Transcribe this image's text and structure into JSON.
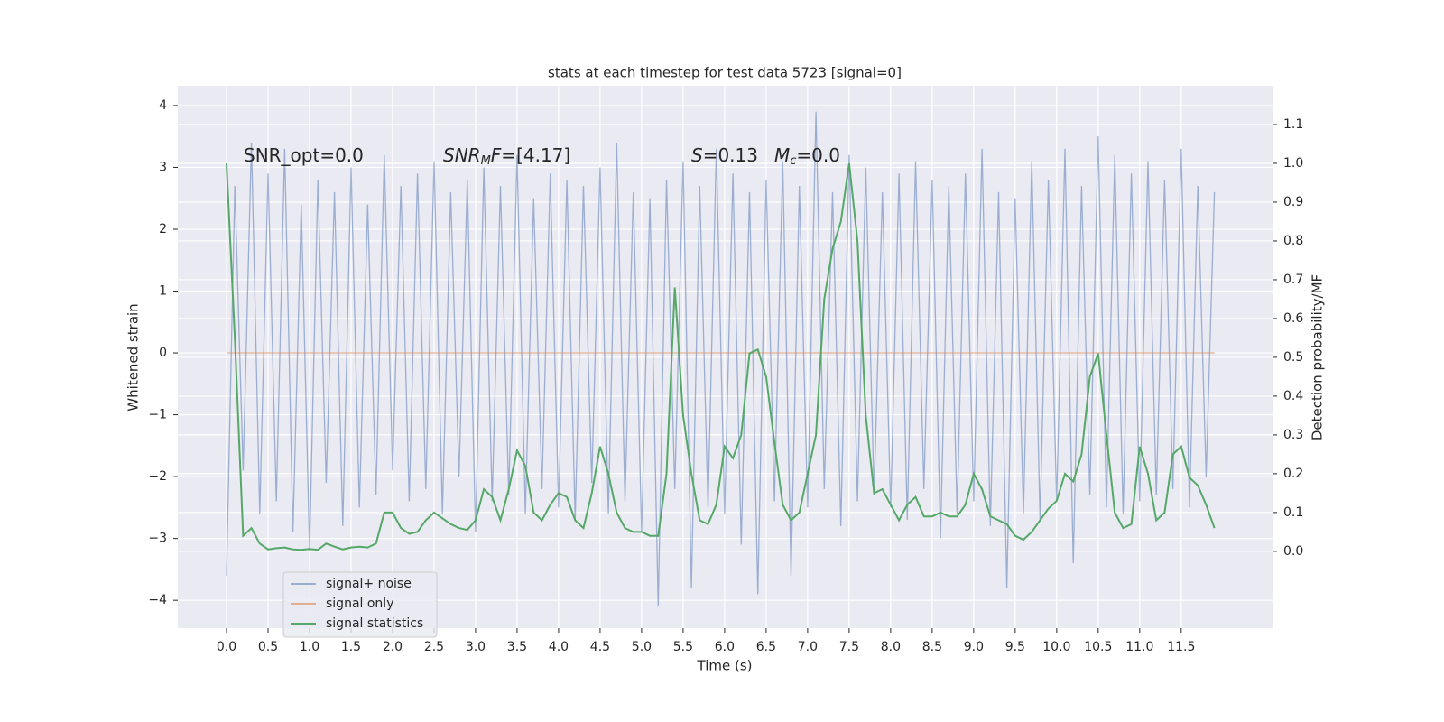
{
  "chart_data": {
    "type": "line",
    "title": "stats at each timestep for test data 5723 [signal=0]",
    "xlabel": "Time (s)",
    "ylabel": "Whitened strain",
    "y2label": "Detection probability/MF",
    "annotations": [
      [
        {
          "text": "SNR_opt=0.0"
        }
      ],
      [
        {
          "text": "SNR",
          "italic": true
        },
        {
          "text": "M",
          "italic": true,
          "sub": true
        },
        {
          "text": "F",
          "italic": true
        },
        {
          "text": "=[4.17]"
        }
      ],
      [
        {
          "text": "S",
          "italic": true
        },
        {
          "text": "=0.13"
        }
      ],
      [
        {
          "text": "M",
          "italic": true
        },
        {
          "text": "c",
          "italic": true,
          "sub": true
        },
        {
          "text": "=0.0"
        }
      ]
    ],
    "grid": true,
    "legend": "lower left",
    "xlim": [
      -0.587,
      12.6
    ],
    "ylim": [
      -4.45,
      4.32
    ],
    "y2lim": [
      -0.198,
      1.2
    ],
    "xticks": [
      {
        "value": 0,
        "label": "0.0"
      },
      0.5,
      {
        "value": 1,
        "label": "1.0"
      },
      1.5,
      {
        "value": 2,
        "label": "2.0"
      },
      2.5,
      {
        "value": 3,
        "label": "3.0"
      },
      3.5,
      {
        "value": 4,
        "label": "4.0"
      },
      4.5,
      {
        "value": 5,
        "label": "5.0"
      },
      5.5,
      {
        "value": 6,
        "label": "6.0"
      },
      6.5,
      {
        "value": 7,
        "label": "7.0"
      },
      7.5,
      {
        "value": 8,
        "label": "8.0"
      },
      8.5,
      {
        "value": 9,
        "label": "9.0"
      },
      9.5,
      {
        "value": 10,
        "label": "10.0"
      },
      10.5,
      {
        "value": 11,
        "label": "11.0"
      },
      11.5
    ],
    "yticks": [
      {
        "value": -4,
        "label": "−4"
      },
      {
        "value": -3,
        "label": "−3"
      },
      {
        "value": -2,
        "label": "−2"
      },
      {
        "value": -1,
        "label": "−1"
      },
      0,
      1,
      2,
      3,
      4
    ],
    "y2ticks": [
      {
        "value": 0,
        "label": "0.0"
      },
      0.1,
      0.2,
      0.3,
      0.4,
      0.5,
      0.6,
      0.7,
      0.8,
      0.9,
      {
        "value": 1,
        "label": "1.0"
      },
      1.1
    ],
    "x": [
      0,
      0.1,
      0.2,
      0.3,
      0.4,
      0.5,
      0.6,
      0.7,
      0.8,
      0.9,
      1,
      1.1,
      1.2,
      1.3,
      1.4,
      1.5,
      1.6,
      1.7,
      1.8,
      1.9,
      2,
      2.1,
      2.2,
      2.3,
      2.4,
      2.5,
      2.6,
      2.7,
      2.8,
      2.9,
      3,
      3.1,
      3.2,
      3.3,
      3.4,
      3.5,
      3.6,
      3.7,
      3.8,
      3.9,
      4,
      4.1,
      4.2,
      4.3,
      4.4,
      4.5,
      4.6,
      4.7,
      4.8,
      4.9,
      5,
      5.1,
      5.2,
      5.3,
      5.4,
      5.5,
      5.6,
      5.7,
      5.8,
      5.9,
      6,
      6.1,
      6.2,
      6.3,
      6.4,
      6.5,
      6.6,
      6.7,
      6.8,
      6.9,
      7,
      7.1,
      7.2,
      7.3,
      7.4,
      7.5,
      7.6,
      7.7,
      7.8,
      7.9,
      8,
      8.1,
      8.2,
      8.3,
      8.4,
      8.5,
      8.6,
      8.7,
      8.8,
      8.9,
      9,
      9.1,
      9.2,
      9.3,
      9.4,
      9.5,
      9.6,
      9.7,
      9.8,
      9.9,
      10,
      10.1,
      10.2,
      10.3,
      10.4,
      10.5,
      10.6,
      10.7,
      10.8,
      10.9,
      11,
      11.1,
      11.2,
      11.3,
      11.4,
      11.5,
      11.6,
      11.7,
      11.8,
      11.9
    ],
    "series": [
      {
        "name": "signal+ noise",
        "color": "#4c72b0",
        "alpha": 0.5,
        "values": [
          -3.6,
          2.7,
          -1.9,
          3.4,
          -2.6,
          2.9,
          -2.4,
          3.3,
          -2.9,
          2.4,
          -3.2,
          2.8,
          -2.1,
          2.6,
          -2.8,
          3.0,
          -2.5,
          2.4,
          -2.3,
          3.2,
          -1.9,
          2.7,
          -2.4,
          2.9,
          -2.2,
          3.1,
          -2.6,
          2.6,
          -2.0,
          2.8,
          -2.9,
          3.0,
          -2.4,
          2.7,
          -2.3,
          3.2,
          -2.6,
          2.5,
          -2.2,
          2.9,
          -2.5,
          2.8,
          -2.7,
          2.7,
          -2.1,
          3.0,
          -2.6,
          3.4,
          -2.4,
          2.6,
          -2.9,
          2.5,
          -4.1,
          2.8,
          -2.2,
          3.1,
          -3.8,
          2.7,
          -2.5,
          3.3,
          -2.6,
          2.9,
          -3.1,
          2.6,
          -3.9,
          2.8,
          -2.4,
          3.1,
          -3.6,
          2.7,
          -2.5,
          3.9,
          -2.2,
          2.6,
          -2.8,
          3.2,
          -2.4,
          3.0,
          -2.3,
          2.6,
          -2.5,
          2.9,
          -2.7,
          3.1,
          -2.2,
          2.8,
          -3.0,
          2.7,
          -2.6,
          2.9,
          -2.4,
          3.3,
          -2.8,
          2.6,
          -3.8,
          2.5,
          -2.6,
          3.1,
          -2.7,
          2.8,
          -2.4,
          3.3,
          -3.4,
          2.7,
          -2.3,
          3.5,
          -2.5,
          3.2,
          -2.6,
          2.9,
          -2.4,
          3.1,
          -2.3,
          2.8,
          -2.2,
          3.3,
          -2.5,
          2.7,
          -2.0,
          2.6
        ]
      },
      {
        "name": "signal only",
        "color": "#dd8452",
        "alpha": 0.6,
        "x": [
          0,
          11.9
        ],
        "values": [
          0,
          0
        ]
      },
      {
        "name": "signal statistics",
        "color": "#55a868",
        "alpha": 1,
        "axis": "y2",
        "values": [
          1.0,
          0.55,
          0.04,
          0.06,
          0.02,
          0.005,
          0.008,
          0.01,
          0.005,
          0.004,
          0.006,
          0.004,
          0.02,
          0.012,
          0.005,
          0.01,
          0.012,
          0.01,
          0.02,
          0.1,
          0.1,
          0.06,
          0.045,
          0.05,
          0.08,
          0.1,
          0.085,
          0.07,
          0.06,
          0.055,
          0.08,
          0.16,
          0.14,
          0.08,
          0.16,
          0.26,
          0.22,
          0.1,
          0.08,
          0.12,
          0.15,
          0.14,
          0.08,
          0.06,
          0.15,
          0.27,
          0.2,
          0.1,
          0.06,
          0.05,
          0.05,
          0.04,
          0.04,
          0.2,
          0.68,
          0.35,
          0.2,
          0.08,
          0.07,
          0.12,
          0.27,
          0.24,
          0.3,
          0.51,
          0.52,
          0.45,
          0.28,
          0.12,
          0.08,
          0.1,
          0.2,
          0.3,
          0.65,
          0.78,
          0.85,
          1.0,
          0.8,
          0.35,
          0.15,
          0.16,
          0.12,
          0.08,
          0.12,
          0.14,
          0.09,
          0.09,
          0.1,
          0.09,
          0.09,
          0.12,
          0.2,
          0.16,
          0.09,
          0.08,
          0.07,
          0.04,
          0.03,
          0.05,
          0.08,
          0.11,
          0.13,
          0.2,
          0.18,
          0.25,
          0.45,
          0.51,
          0.3,
          0.1,
          0.06,
          0.07,
          0.27,
          0.2,
          0.08,
          0.1,
          0.25,
          0.27,
          0.19,
          0.17,
          0.12,
          0.06
        ]
      }
    ]
  }
}
